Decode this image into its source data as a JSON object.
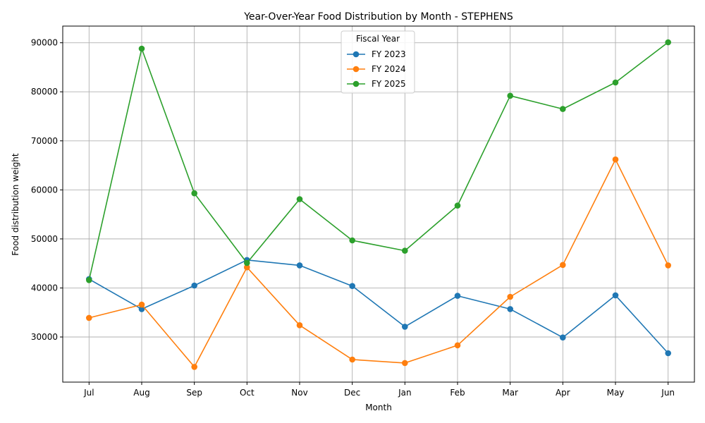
{
  "chart_data": {
    "type": "line",
    "title": "Year-Over-Year Food Distribution by Month - STEPHENS",
    "xlabel": "Month",
    "ylabel": "Food distribution weight",
    "categories": [
      "Jul",
      "Aug",
      "Sep",
      "Oct",
      "Nov",
      "Dec",
      "Jan",
      "Feb",
      "Mar",
      "Apr",
      "May",
      "Jun"
    ],
    "y_ticks": [
      30000,
      40000,
      50000,
      60000,
      70000,
      80000,
      90000
    ],
    "ylim": [
      20800,
      93400
    ],
    "grid": true,
    "legend": {
      "title": "Fiscal Year",
      "placement": "upper-center"
    },
    "series": [
      {
        "name": "FY 2023",
        "color": "#1f77b4",
        "values": [
          41800,
          35700,
          40500,
          45700,
          44600,
          40400,
          32100,
          38400,
          35700,
          29900,
          38500,
          26700
        ]
      },
      {
        "name": "FY 2024",
        "color": "#ff7f0e",
        "values": [
          33900,
          36600,
          23900,
          44200,
          32400,
          25400,
          24700,
          28300,
          38200,
          44700,
          66200,
          44600
        ]
      },
      {
        "name": "FY 2025",
        "color": "#2ca02c",
        "values": [
          41600,
          88800,
          59300,
          45100,
          58100,
          49700,
          47600,
          56800,
          79200,
          76500,
          81900,
          90100
        ]
      }
    ]
  }
}
